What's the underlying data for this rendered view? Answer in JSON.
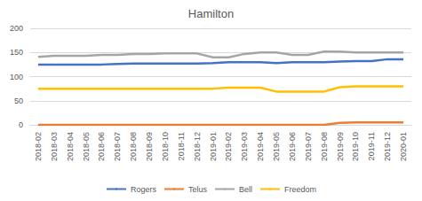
{
  "chart_data": {
    "type": "line",
    "title": "Hamilton",
    "categories": [
      "2018-02",
      "2018-03",
      "2018-04",
      "2018-05",
      "2018-06",
      "2018-07",
      "2018-08",
      "2018-09",
      "2018-10",
      "2018-11",
      "2018-12",
      "2019-01",
      "2019-02",
      "2019-03",
      "2019-04",
      "2019-05",
      "2019-06",
      "2019-07",
      "2019-08",
      "2019-09",
      "2019-10",
      "2019-11",
      "2019-12",
      "2020-01"
    ],
    "series": [
      {
        "name": "Rogers",
        "color": "#4472c4",
        "values": [
          125,
          125,
          125,
          125,
          125,
          126,
          127,
          127,
          127,
          127,
          127,
          128,
          130,
          130,
          130,
          128,
          130,
          130,
          130,
          131,
          132,
          132,
          136,
          136
        ]
      },
      {
        "name": "Telus",
        "color": "#ed7d31",
        "values": [
          0,
          0,
          0,
          0,
          0,
          0,
          0,
          0,
          0,
          0,
          0,
          0,
          0,
          0,
          0,
          0,
          0,
          0,
          0,
          4,
          5,
          5,
          5,
          5
        ]
      },
      {
        "name": "Bell",
        "color": "#a5a5a5",
        "values": [
          141,
          143,
          143,
          143,
          145,
          145,
          147,
          147,
          148,
          148,
          148,
          140,
          140,
          147,
          150,
          150,
          145,
          145,
          152,
          152,
          150,
          150,
          150,
          150
        ]
      },
      {
        "name": "Freedom",
        "color": "#ffc000",
        "values": [
          75,
          75,
          75,
          75,
          75,
          75,
          75,
          75,
          75,
          75,
          75,
          75,
          77,
          77,
          77,
          69,
          69,
          69,
          69,
          78,
          80,
          80,
          80,
          80
        ]
      }
    ],
    "ylim": [
      0,
      200
    ],
    "yticks": [
      0,
      50,
      100,
      150,
      200
    ],
    "grid": true,
    "legend": "bottom"
  }
}
